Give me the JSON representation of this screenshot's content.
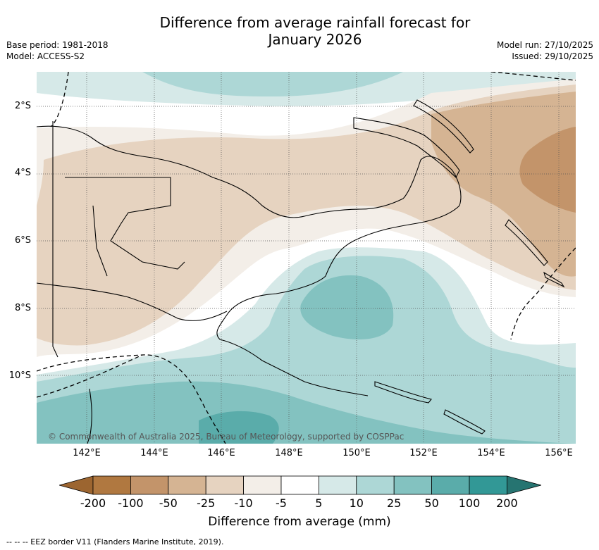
{
  "title": "Difference from average rainfall forecast for January 2026",
  "title_line1": "Difference from average rainfall forecast for",
  "title_line2": "January 2026",
  "base_period": "Base period: 1981-2018",
  "model": "Model: ACCESS-S2",
  "model_run": "Model run: 27/10/2025",
  "issued": "Issued: 29/10/2025",
  "copyright": "© Commonwealth of Australia 2025, Bureau of Meteorology, supported by COSPPac",
  "lat_labels": [
    "2°S",
    "4°S",
    "6°S",
    "8°S",
    "10°S"
  ],
  "lon_labels": [
    "142°E",
    "144°E",
    "146°E",
    "148°E",
    "150°E",
    "152°E",
    "154°E",
    "156°E"
  ],
  "colorbar": {
    "label": "Difference from average (mm)",
    "ticks": [
      "-200",
      "-100",
      "-50",
      "-25",
      "-10",
      "-5",
      "5",
      "10",
      "25",
      "50",
      "100",
      "200"
    ],
    "colors": [
      "#9c6530",
      "#b07840",
      "#c3946a",
      "#d5b493",
      "#e6d3c0",
      "#f3eee8",
      "#ffffff",
      "#d6e9e8",
      "#add7d6",
      "#83c2c0",
      "#5aacaa",
      "#329896",
      "#267471"
    ]
  },
  "footnote": "--  --  -- EEZ border V11 (Flanders Marine Institute, 2019).",
  "icons": [
    "map-contour-graphic"
  ]
}
